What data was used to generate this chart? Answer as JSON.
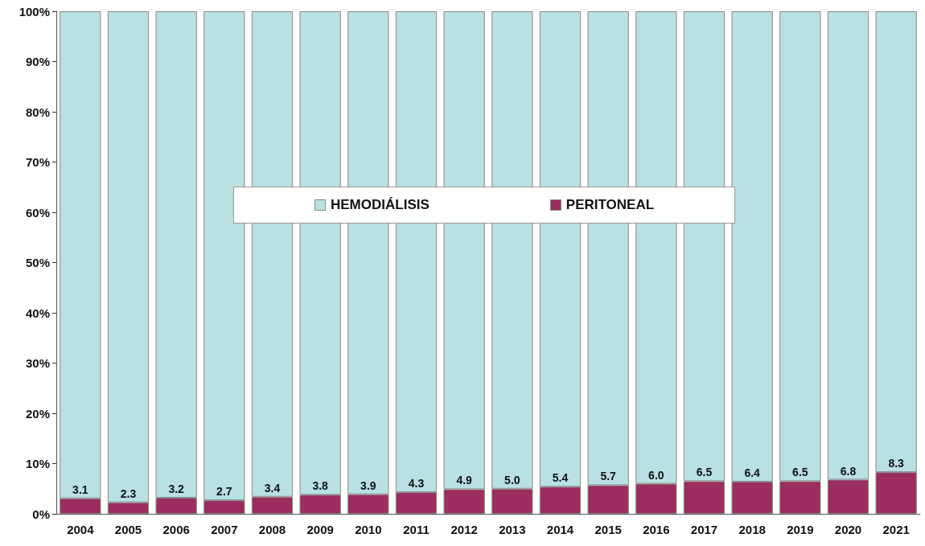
{
  "chart_data": {
    "type": "bar",
    "stacked": true,
    "categories": [
      "2004",
      "2005",
      "2006",
      "2007",
      "2008",
      "2009",
      "2010",
      "2011",
      "2012",
      "2013",
      "2014",
      "2015",
      "2016",
      "2017",
      "2018",
      "2019",
      "2020",
      "2021"
    ],
    "series": [
      {
        "name": "PERITONEAL",
        "color": "#9b2d5f",
        "values": [
          3.1,
          2.3,
          3.2,
          2.7,
          3.4,
          3.8,
          3.9,
          4.3,
          4.9,
          5.0,
          5.4,
          5.7,
          6.0,
          6.5,
          6.4,
          6.5,
          6.8,
          8.3
        ],
        "value_labels": [
          "3.1",
          "2.3",
          "3.2",
          "2.7",
          "3.4",
          "3.8",
          "3.9",
          "4.3",
          "4.9",
          "5.0",
          "5.4",
          "5.7",
          "6.0",
          "6.5",
          "6.4",
          "6.5",
          "6.8",
          "8.3"
        ]
      },
      {
        "name": "HEMODIÁLISIS",
        "color": "#b9e0e2",
        "values": [
          96.9,
          97.7,
          96.8,
          97.3,
          96.6,
          96.2,
          96.1,
          95.7,
          95.1,
          95.0,
          94.6,
          94.3,
          94.0,
          93.5,
          93.6,
          93.5,
          93.2,
          91.7
        ]
      }
    ],
    "ylim": [
      0,
      100
    ],
    "yticks": [
      {
        "value": 0,
        "label": "0%"
      },
      {
        "value": 10,
        "label": "10%"
      },
      {
        "value": 20,
        "label": "20%"
      },
      {
        "value": 30,
        "label": "30%"
      },
      {
        "value": 40,
        "label": "40%"
      },
      {
        "value": 50,
        "label": "50%"
      },
      {
        "value": 60,
        "label": "60%"
      },
      {
        "value": 70,
        "label": "70%"
      },
      {
        "value": 80,
        "label": "80%"
      },
      {
        "value": 90,
        "label": "90%"
      },
      {
        "value": 100,
        "label": "100%"
      }
    ],
    "legend": "center",
    "grid": false
  }
}
